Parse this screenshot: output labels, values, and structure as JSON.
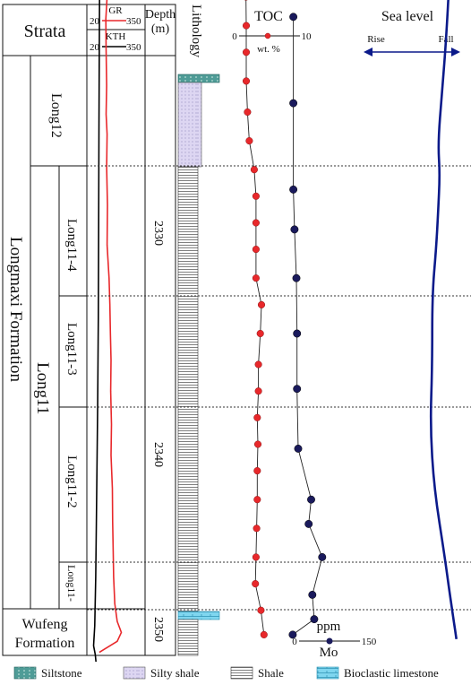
{
  "header": {
    "strata_label": "Strata",
    "gr_label": "GR",
    "gr_min": "20",
    "gr_max": "350",
    "kth_label": "KTH",
    "kth_min": "20",
    "kth_max": "350",
    "depth_label": "Depth",
    "depth_unit": "(m)",
    "lithology_label": "Lithology",
    "toc_title": "TOC",
    "toc_min": "0",
    "toc_max": "10",
    "toc_unit": "wt. %",
    "sea_level_title": "Sea level",
    "rise_label": "Rise",
    "fall_label": "Fall"
  },
  "strata": {
    "formation_main": "Longmaxi Formation",
    "member": "Long11",
    "units": [
      "Long12",
      "Long11-4",
      "Long11-3",
      "Long11-2",
      "Long11-"
    ],
    "formation_bottom_line1": "Wufeng",
    "formation_bottom_line2": "Formation"
  },
  "depth_ticks": [
    "2330",
    "2340",
    "2350"
  ],
  "mo_axis": {
    "label": "Mo",
    "unit": "ppm",
    "min": "0",
    "max": "150"
  },
  "legend": {
    "items": [
      {
        "name": "siltstone",
        "label": "Siltstone",
        "color": "#3f8f8a"
      },
      {
        "name": "silty-shale",
        "label": "Silty shale",
        "color": "#c8bfe6"
      },
      {
        "name": "shale",
        "label": "Shale",
        "color": "#cfcfcf"
      },
      {
        "name": "bioclastic-limestone",
        "label": "Bioclastic limestone",
        "color": "#6fd0ea"
      }
    ]
  },
  "colors": {
    "toc": "#e8282b",
    "mo": "#1a1a5c",
    "sea_level": "#0b1a8a",
    "gr": "#e8282b",
    "kth": "#000000"
  },
  "chart_data": {
    "type": "line",
    "depth_range": [
      2318,
      2351
    ],
    "toc": {
      "name": "TOC",
      "depth": [
        2319.9,
        2321.2,
        2322.4,
        2323.7,
        2325.1,
        2326.4,
        2327.7,
        2328.9,
        2330.1,
        2331.3,
        2332.6,
        2333.8,
        2335.1,
        2336.5,
        2337.7,
        2338.9,
        2340.1,
        2341.3,
        2342.6,
        2343.9,
        2345.2,
        2346.4,
        2347.6,
        2348.7
      ],
      "values": [
        0.25,
        0.3,
        0.3,
        0.3,
        0.5,
        0.8,
        1.6,
        1.9,
        1.9,
        1.9,
        1.9,
        2.8,
        2.6,
        2.3,
        2.3,
        2.1,
        2.2,
        2.1,
        2.1,
        2.0,
        1.9,
        1.8,
        2.7,
        3.2
      ]
    },
    "mo": {
      "name": "Mo",
      "depth": [
        2320.8,
        2324.7,
        2328.6,
        2330.4,
        2332.6,
        2335.1,
        2337.6,
        2340.3,
        2342.6,
        2343.7,
        2345.2,
        2346.9,
        2348.0,
        2348.7
      ],
      "values": [
        11,
        11,
        11,
        13,
        16,
        17,
        17,
        19,
        40,
        36,
        58,
        42,
        45,
        10
      ]
    },
    "gr": {
      "name": "GR",
      "range": [
        20,
        350
      ],
      "depth": [
        2318.9,
        2319.6,
        2320.9,
        2322.3,
        2323.9,
        2325.2,
        2326.1,
        2327.6,
        2329.3,
        2331.1,
        2332.6,
        2333.8,
        2335.1,
        2336.3,
        2337.7,
        2339.2,
        2340.6,
        2342.1,
        2343.6,
        2344.9,
        2346.1,
        2347.3,
        2348.1,
        2348.6,
        2349.0,
        2349.5
      ],
      "values": [
        150,
        130,
        120,
        122,
        125,
        122,
        128,
        125,
        130,
        128,
        140,
        145,
        148,
        152,
        150,
        155,
        152,
        160,
        162,
        165,
        168,
        175,
        190,
        215,
        190,
        80
      ]
    },
    "kth": {
      "name": "KTH",
      "range": [
        20,
        350
      ],
      "depth": [
        2318.9,
        2322.1,
        2326.0,
        2330.0,
        2334.4,
        2338.2,
        2340.8,
        2343.7,
        2346.1,
        2348.3,
        2349.2,
        2349.6,
        2350.1
      ],
      "values": [
        82,
        80,
        78,
        76,
        74,
        70,
        66,
        62,
        58,
        52,
        45,
        55,
        62
      ]
    },
    "sea_level": {
      "name": "Sea level",
      "depth": [
        2318.9,
        2322.1,
        2324.3,
        2326.5,
        2327.9,
        2329.7,
        2331.3,
        2333.4,
        2336.6,
        2339.3,
        2342.1,
        2345.2,
        2346.8,
        2348.0,
        2348.9
      ],
      "values": [
        0.89,
        0.85,
        0.81,
        0.77,
        0.79,
        0.77,
        0.75,
        0.71,
        0.71,
        0.69,
        0.73,
        0.84,
        0.89,
        0.93,
        0.96
      ]
    }
  }
}
